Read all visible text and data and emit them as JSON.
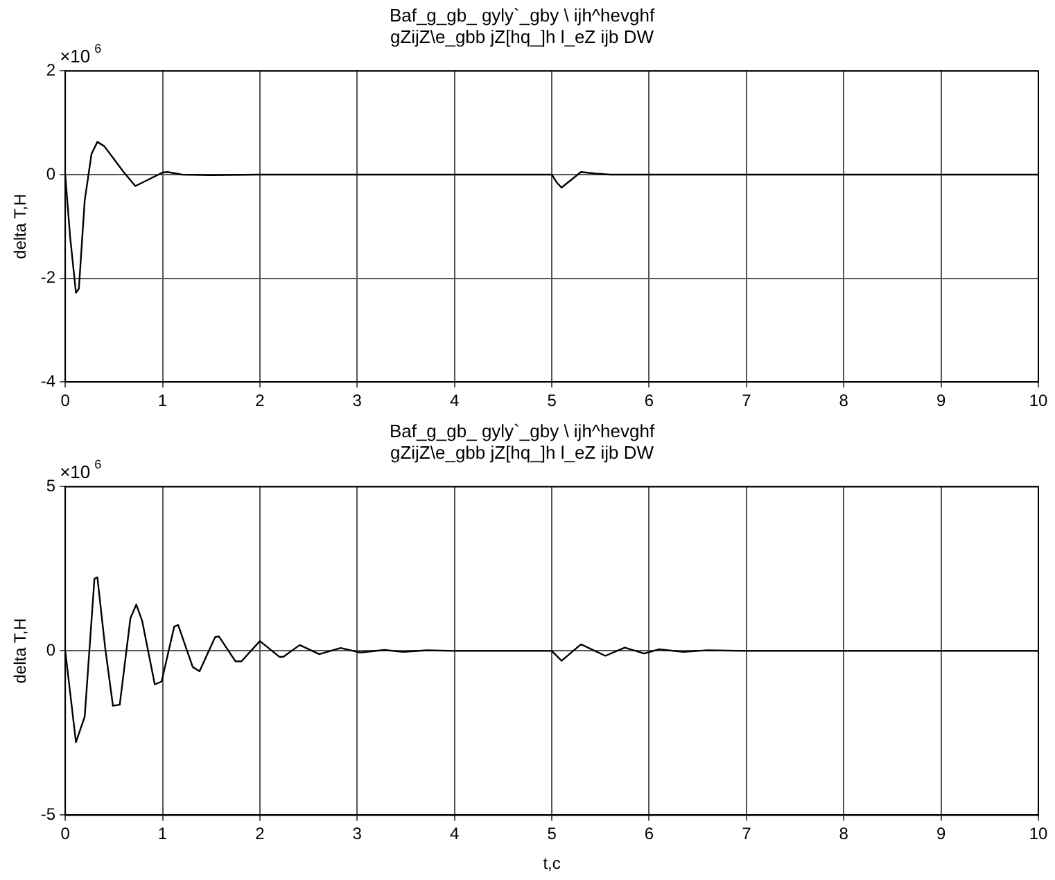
{
  "chart_data": [
    {
      "type": "line",
      "title": [
        "Baf_g_gb_ gyly`_gby \\ ijh^hevghf",
        "gZijZ\\e_gbb jZ[hq_]h l_eZ ijb DW"
      ],
      "ylabel": "delta T,H",
      "annotations": [
        "×10$^{6}$"
      ],
      "xlim": [
        0,
        10
      ],
      "xticks": [
        0,
        1,
        2,
        3,
        4,
        5,
        6,
        7,
        8,
        9,
        10
      ],
      "ylim": [
        -4,
        2
      ],
      "yticks": [
        -4,
        -2,
        0,
        2
      ],
      "grid": true,
      "legend": false,
      "marker": "none",
      "line_style": "solid",
      "series": [
        {
          "color": "#000000",
          "x": [
            0,
            0.05,
            0.11,
            0.14,
            0.2,
            0.27,
            0.33,
            0.4,
            0.5,
            0.6,
            0.72,
            0.85,
            1.0,
            1.05,
            1.2,
            1.5,
            2,
            5,
            5.05,
            5.1,
            5.2,
            5.3,
            5.45,
            5.6,
            10
          ],
          "values": [
            0,
            -1.2,
            -2.28,
            -2.2,
            -0.5,
            0.4,
            0.63,
            0.55,
            0.3,
            0.05,
            -0.22,
            -0.1,
            0.04,
            0.05,
            0,
            -0.01,
            0,
            0,
            -0.15,
            -0.25,
            -0.1,
            0.05,
            0.02,
            0,
            0
          ]
        }
      ]
    },
    {
      "type": "line",
      "title": [
        "Baf_g_gb_ gyly`_gby \\ ijh^hevghf",
        "gZijZ\\e_gbb jZ[hq_]h l_eZ ijb DW"
      ],
      "xlabel": "t,c",
      "ylabel": "delta T,H",
      "annotations": [
        "×10$^{6}$"
      ],
      "xlim": [
        0,
        10
      ],
      "xticks": [
        0,
        1,
        2,
        3,
        4,
        5,
        6,
        7,
        8,
        9,
        10
      ],
      "ylim": [
        -5,
        5
      ],
      "yticks": [
        -5,
        0,
        5
      ],
      "grid": true,
      "legend": false,
      "marker": "none",
      "line_style": "solid",
      "series": [
        {
          "color": "#000000",
          "x": [
            0,
            0.11,
            0.2,
            0.3,
            0.33,
            0.41,
            0.49,
            0.56,
            0.67,
            0.73,
            0.79,
            0.92,
            0.99,
            1.12,
            1.16,
            1.31,
            1.38,
            1.54,
            1.58,
            1.75,
            1.81,
            2.0,
            2.2,
            2.24,
            2.41,
            2.61,
            2.83,
            3.03,
            3.28,
            3.47,
            3.72,
            4,
            5,
            5.1,
            5.3,
            5.55,
            5.75,
            5.95,
            6.1,
            6.35,
            6.6,
            7,
            10
          ],
          "values": [
            0,
            -2.78,
            -2,
            2.2,
            2.24,
            0.1,
            -1.67,
            -1.64,
            1.0,
            1.41,
            0.92,
            -1.02,
            -0.93,
            0.74,
            0.79,
            -0.49,
            -0.62,
            0.42,
            0.44,
            -0.32,
            -0.32,
            0.3,
            -0.18,
            -0.18,
            0.18,
            -0.1,
            0.09,
            -0.05,
            0.03,
            -0.03,
            0.02,
            0,
            0,
            -0.3,
            0.2,
            -0.15,
            0.1,
            -0.08,
            0.05,
            -0.03,
            0.02,
            0,
            0
          ]
        }
      ]
    }
  ]
}
